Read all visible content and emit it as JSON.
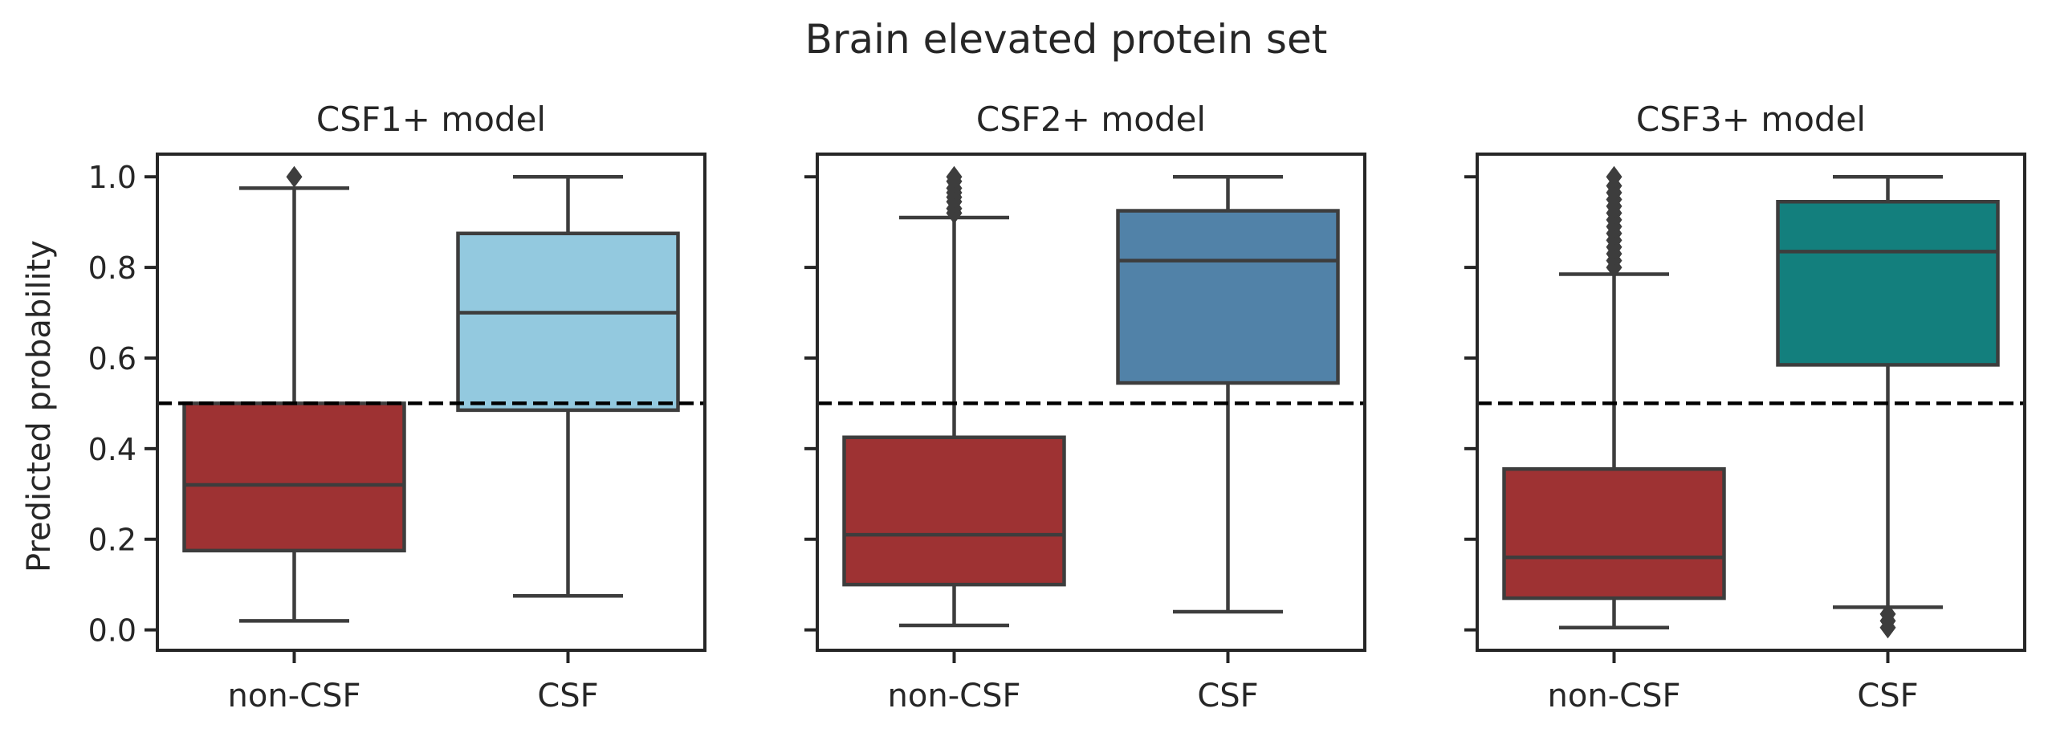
{
  "chart_data": {
    "type": "box",
    "title": "Brain elevated protein set",
    "ylabel": "Predicted probability",
    "ylim": [
      -0.045,
      1.05
    ],
    "yticks": [
      "0.0",
      "0.2",
      "0.4",
      "0.6",
      "0.8",
      "1.0"
    ],
    "categories": [
      "non-CSF",
      "CSF"
    ],
    "threshold": 0.5,
    "colors": {
      "non_csf": "#9e3233",
      "csf1": "#93c9df",
      "csf2": "#5182a8",
      "csf3": "#137f7d",
      "box_edge": "#3d3d3d",
      "threshold_line": "#000000"
    },
    "panels": [
      {
        "title": "CSF1+ model",
        "boxes": [
          {
            "category": "non-CSF",
            "color": "#9e3233",
            "whisker_low": 0.02,
            "q1": 0.175,
            "median": 0.32,
            "q3": 0.5,
            "whisker_high": 0.975,
            "outliers": [
              1.0
            ]
          },
          {
            "category": "CSF",
            "color": "#93c9df",
            "whisker_low": 0.075,
            "q1": 0.485,
            "median": 0.7,
            "q3": 0.875,
            "whisker_high": 1.0,
            "outliers": []
          }
        ]
      },
      {
        "title": "CSF2+ model",
        "boxes": [
          {
            "category": "non-CSF",
            "color": "#9e3233",
            "whisker_low": 0.01,
            "q1": 0.1,
            "median": 0.21,
            "q3": 0.425,
            "whisker_high": 0.91,
            "outliers": [
              0.92,
              0.93,
              0.945,
              0.955,
              0.965,
              0.975,
              0.99,
              1.0
            ]
          },
          {
            "category": "CSF",
            "color": "#5182a8",
            "whisker_low": 0.04,
            "q1": 0.545,
            "median": 0.815,
            "q3": 0.925,
            "whisker_high": 1.0,
            "outliers": []
          }
        ]
      },
      {
        "title": "CSF3+ model",
        "boxes": [
          {
            "category": "non-CSF",
            "color": "#9e3233",
            "whisker_low": 0.005,
            "q1": 0.07,
            "median": 0.16,
            "q3": 0.355,
            "whisker_high": 0.785,
            "outliers": [
              0.8,
              0.815,
              0.83,
              0.845,
              0.86,
              0.875,
              0.89,
              0.905,
              0.92,
              0.935,
              0.95,
              0.965,
              0.98,
              1.0
            ]
          },
          {
            "category": "CSF",
            "color": "#137f7d",
            "whisker_low": 0.05,
            "q1": 0.585,
            "median": 0.835,
            "q3": 0.945,
            "whisker_high": 1.0,
            "outliers": [
              0.035,
              0.02,
              0.005
            ]
          }
        ]
      }
    ]
  }
}
